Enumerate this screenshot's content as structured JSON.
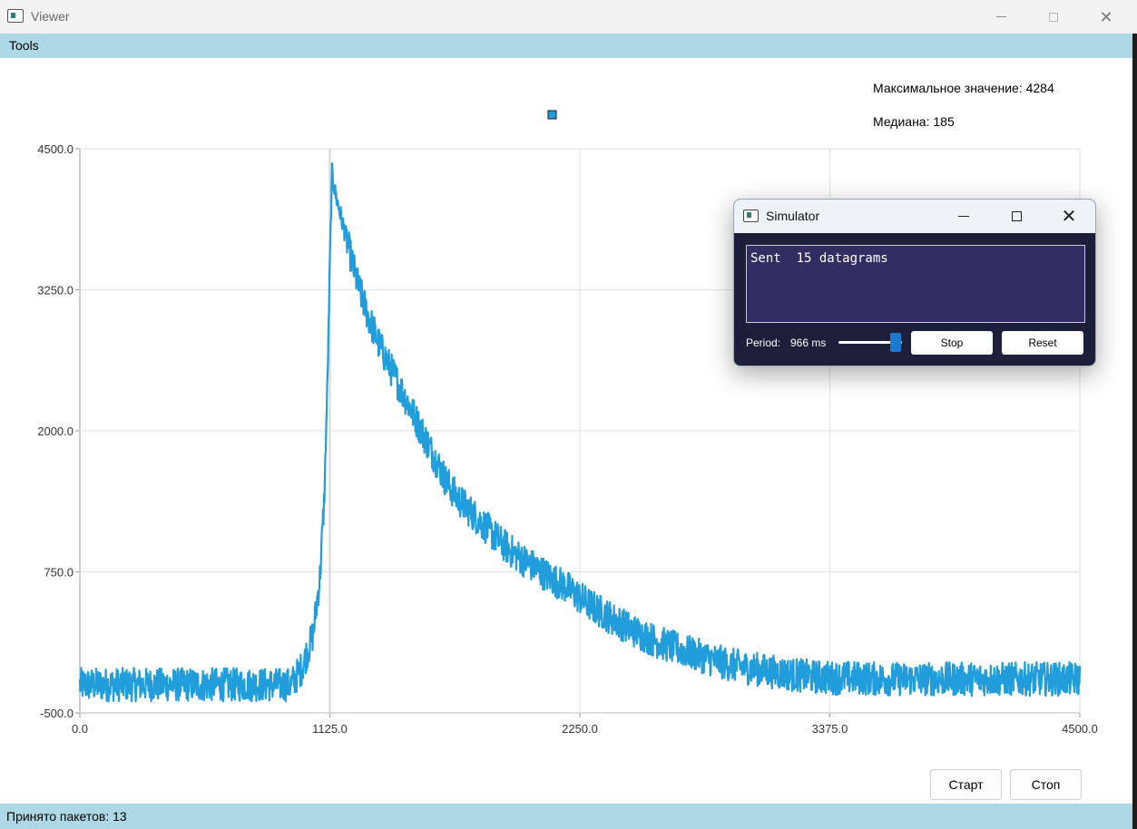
{
  "window": {
    "title": "Viewer",
    "min_glyph": "",
    "max_glyph": "",
    "close_glyph": "✕"
  },
  "menu": {
    "tools_label": "Tools"
  },
  "stats": {
    "max_label": "Максимальное значение: 4284",
    "median_label": "Медиана: 185"
  },
  "buttons": {
    "start_label": "Старт",
    "stop_label": "Стоп"
  },
  "status": {
    "text": "Принято пакетов: 13"
  },
  "simulator": {
    "title": "Simulator",
    "close_glyph": "✕",
    "log_text": "Sent  15 datagrams",
    "period_label": "Period:",
    "period_value": "966 ms",
    "period_slider_fraction": 0.9,
    "stop_label": "Stop",
    "reset_label": "Reset"
  },
  "colors": {
    "series": "#229ddb",
    "bars": "#add8e6",
    "sim_bg": "#1c1e3a",
    "sim_log_bg": "#322d63",
    "slider_handle": "#1b79d1"
  },
  "chart_data": {
    "type": "line",
    "title": "",
    "xlabel": "",
    "ylabel": "",
    "xlim": [
      0,
      4500
    ],
    "ylim": [
      -500,
      4500
    ],
    "x_ticks": [
      "0.0",
      "1125.0",
      "2250.0",
      "3375.0",
      "4500.0"
    ],
    "y_ticks": [
      "4500.0",
      "3250.0",
      "2000.0",
      "750.0",
      "-500.0"
    ],
    "grid": true,
    "legend": "none",
    "series": [
      {
        "color": "#229ddb",
        "x": [
          0,
          200,
          400,
          600,
          800,
          950,
          1000,
          1050,
          1080,
          1100,
          1115,
          1125,
          1135,
          1150,
          1200,
          1250,
          1300,
          1350,
          1400,
          1450,
          1500,
          1550,
          1600,
          1650,
          1700,
          1750,
          1800,
          1850,
          1900,
          1950,
          2000,
          2100,
          2200,
          2250,
          2300,
          2400,
          2500,
          2600,
          2700,
          2800,
          2900,
          3000,
          3100,
          3200,
          3300,
          3400,
          3500,
          3600,
          3700,
          3800,
          3900,
          4000,
          4100,
          4200,
          4300,
          4400,
          4500
        ],
        "y": [
          -250,
          -250,
          -250,
          -250,
          -250,
          -250,
          -100,
          200,
          700,
          1400,
          2500,
          3500,
          4284,
          4100,
          3700,
          3300,
          3000,
          2750,
          2550,
          2350,
          2150,
          1950,
          1750,
          1550,
          1400,
          1300,
          1200,
          1100,
          1000,
          920,
          850,
          720,
          600,
          520,
          450,
          330,
          220,
          130,
          60,
          0,
          -60,
          -100,
          -130,
          -160,
          -180,
          -190,
          -190,
          -200,
          -200,
          -200,
          -200,
          -200,
          -200,
          -200,
          -200,
          -200,
          -200
        ],
        "noise_amplitude": 150
      }
    ]
  }
}
